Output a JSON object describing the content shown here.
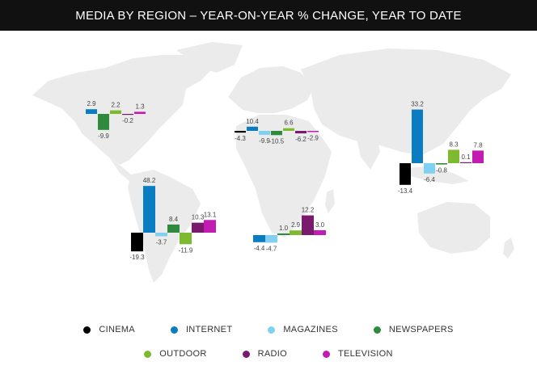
{
  "title": "MEDIA BY REGION – YEAR-ON-YEAR % CHANGE, YEAR TO DATE",
  "legend": [
    {
      "name": "CINEMA",
      "color": "#000000"
    },
    {
      "name": "INTERNET",
      "color": "#0A7CC1"
    },
    {
      "name": "MAGAZINES",
      "color": "#7FD0F1"
    },
    {
      "name": "NEWSPAPERS",
      "color": "#2E8B3E"
    },
    {
      "name": "OUTDOOR",
      "color": "#7DBA2F"
    },
    {
      "name": "RADIO",
      "color": "#7A1A6D"
    },
    {
      "name": "TELEVISION",
      "color": "#C21CB3"
    }
  ],
  "chart_data": [
    {
      "type": "bar",
      "region": "North America",
      "categories": [
        "INTERNET",
        "NEWSPAPERS",
        "OUTDOOR",
        "RADIO",
        "TELEVISION"
      ],
      "values": [
        2.9,
        -9.9,
        2.2,
        -0.2,
        1.3
      ],
      "labels": [
        "2.9",
        "-9.9",
        "2.2",
        "-0.2",
        "1.3"
      ]
    },
    {
      "type": "bar",
      "region": "Europe",
      "categories": [
        "CINEMA",
        "INTERNET",
        "MAGAZINES",
        "NEWSPAPERS",
        "OUTDOOR",
        "RADIO",
        "TELEVISION"
      ],
      "values": [
        -4.3,
        10.4,
        -9.9,
        -10.5,
        6.6,
        -6.2,
        -2.9
      ],
      "labels": [
        "-4.3",
        "10.4",
        "-9.9",
        "-10.5",
        "6.6",
        "-6.2",
        "-2.9"
      ]
    },
    {
      "type": "bar",
      "region": "Asia Pacific",
      "categories": [
        "CINEMA",
        "INTERNET",
        "MAGAZINES",
        "NEWSPAPERS",
        "OUTDOOR",
        "RADIO",
        "TELEVISION"
      ],
      "values": [
        -13.4,
        33.2,
        -6.4,
        -0.8,
        8.3,
        0.1,
        7.8
      ],
      "labels": [
        "-13.4",
        "33.2",
        "-6.4",
        "-0.8",
        "8.3",
        "0.1",
        "7.8"
      ]
    },
    {
      "type": "bar",
      "region": "Latin America",
      "categories": [
        "CINEMA",
        "INTERNET",
        "MAGAZINES",
        "NEWSPAPERS",
        "OUTDOOR",
        "RADIO",
        "TELEVISION"
      ],
      "values": [
        -19.3,
        48.2,
        -3.7,
        8.4,
        -11.9,
        10.3,
        13.1
      ],
      "labels": [
        "-19.3",
        "48.2",
        "-3.7",
        "8.4",
        "-11.9",
        "10.3",
        "13.1"
      ]
    },
    {
      "type": "bar",
      "region": "Middle East & Africa",
      "categories": [
        "INTERNET",
        "MAGAZINES",
        "NEWSPAPERS",
        "OUTDOOR",
        "RADIO",
        "TELEVISION"
      ],
      "values": [
        -4.4,
        -4.7,
        1.0,
        2.9,
        12.2,
        3.0
      ],
      "labels": [
        "-4.4",
        "-4.7",
        "1.0",
        "2.9",
        "12.2",
        "3.0"
      ]
    }
  ]
}
